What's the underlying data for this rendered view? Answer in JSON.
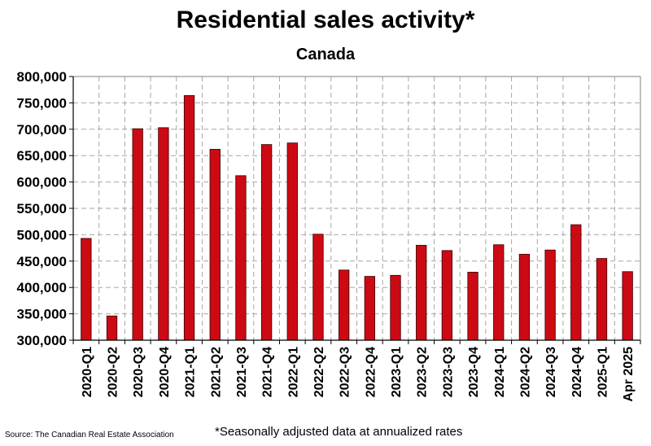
{
  "header": {
    "title": "Residential sales activity*",
    "subtitle": "Canada"
  },
  "footer": {
    "source": "Source: The Canadian Real Estate Association",
    "footnote": "*Seasonally adjusted data at annualized rates"
  },
  "colors": {
    "bar_fill": "#cc0a14",
    "bar_stroke": "#3a0000",
    "grid": "#a6a6a6",
    "axis": "#000000"
  },
  "chart_data": {
    "type": "bar",
    "title": "Residential sales activity*",
    "subtitle": "Canada",
    "xlabel": "",
    "ylabel": "",
    "ylim": [
      300000,
      800000
    ],
    "ytick_step": 50000,
    "yticks": [
      "300,000",
      "350,000",
      "400,000",
      "450,000",
      "500,000",
      "550,000",
      "600,000",
      "650,000",
      "700,000",
      "750,000",
      "800,000"
    ],
    "grid": true,
    "categories": [
      "2020-Q1",
      "2020-Q2",
      "2020-Q3",
      "2020-Q4",
      "2021-Q1",
      "2021-Q2",
      "2021-Q3",
      "2021-Q4",
      "2022-Q1",
      "2022-Q2",
      "2022-Q3",
      "2022-Q4",
      "2023-Q1",
      "2023-Q2",
      "2023-Q3",
      "2023-Q4",
      "2024-Q1",
      "2024-Q2",
      "2024-Q3",
      "2024-Q4",
      "2025-Q1",
      "Apr 2025"
    ],
    "values": [
      493000,
      346000,
      701000,
      703000,
      764000,
      662000,
      612000,
      671000,
      674000,
      501000,
      433000,
      421000,
      423000,
      480000,
      470000,
      429000,
      481000,
      463000,
      471000,
      519000,
      455000,
      430000
    ]
  }
}
